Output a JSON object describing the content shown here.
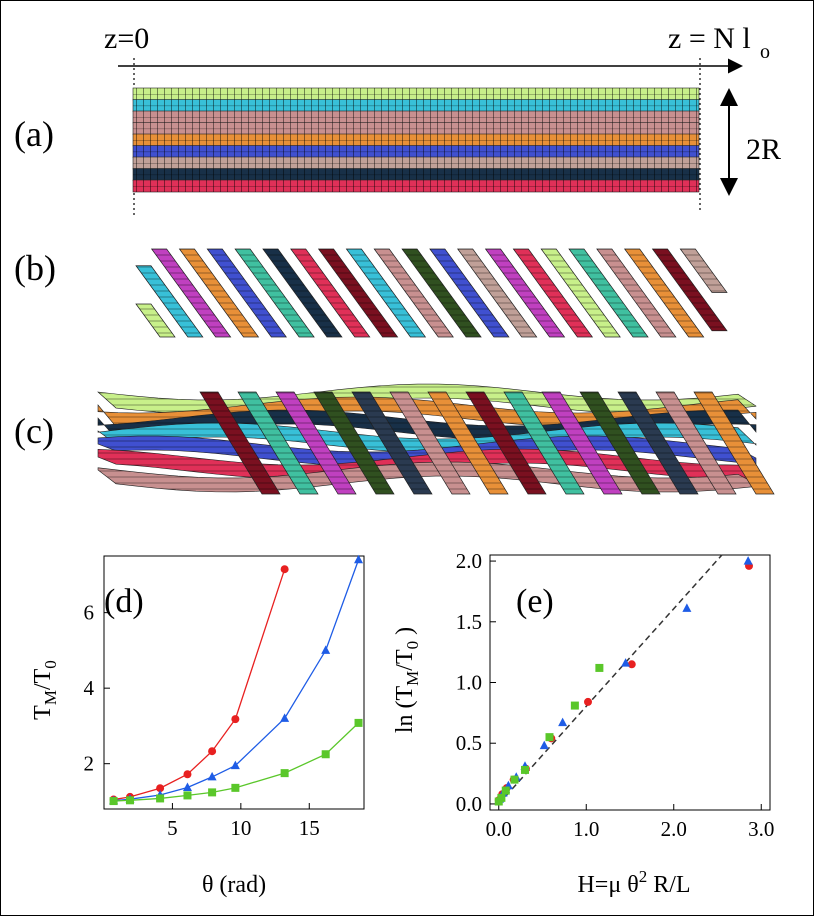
{
  "panel_labels": [
    "(a)",
    "(b)",
    "(c)",
    "(d)",
    "(e)"
  ],
  "panel_a": {
    "z_start_label": "z=0",
    "z_end_label": "z = N l",
    "z_end_subscript": "o",
    "diameter_label": "2R"
  },
  "strand_colors": [
    "#c8f08a",
    "#38c0d8",
    "#c89090",
    "#e89038",
    "#4050d0",
    "#c0a098",
    "#183048",
    "#e03058"
  ],
  "chart_data": [
    {
      "type": "line",
      "panel": "(d)",
      "xlabel": "θ (rad)",
      "ylabel_main": "T",
      "ylabel_sub1": "M",
      "ylabel_mid": "/T",
      "ylabel_sub2": "0",
      "xlim": [
        0,
        19
      ],
      "ylim": [
        0.8,
        7.5
      ],
      "xticks": [
        5,
        10,
        15
      ],
      "yticks": [
        2,
        4,
        6
      ],
      "series": [
        {
          "color": "#e82020",
          "marker": "circle",
          "x": [
            0.7,
            1.9,
            4.1,
            6.1,
            7.9,
            9.6,
            13.2
          ],
          "y": [
            1.05,
            1.12,
            1.35,
            1.72,
            2.33,
            3.18,
            7.15
          ]
        },
        {
          "color": "#1e5ce6",
          "marker": "triangle",
          "x": [
            0.7,
            1.9,
            4.1,
            6.1,
            7.9,
            9.6,
            13.2,
            16.2,
            18.6
          ],
          "y": [
            1.02,
            1.06,
            1.17,
            1.37,
            1.65,
            1.95,
            3.2,
            5.0,
            7.4
          ]
        },
        {
          "color": "#5ac72a",
          "marker": "square",
          "x": [
            0.7,
            1.9,
            4.1,
            6.1,
            7.9,
            9.6,
            13.2,
            16.2,
            18.6
          ],
          "y": [
            1.01,
            1.03,
            1.08,
            1.16,
            1.24,
            1.36,
            1.75,
            2.25,
            3.08
          ]
        }
      ]
    },
    {
      "type": "scatter",
      "panel": "(e)",
      "xlabel_main": "H=μ θ",
      "xlabel_sup": "2",
      "xlabel_end": " R/L",
      "ylabel_main": "ln (T",
      "ylabel_sub1": "M",
      "ylabel_mid": "/T",
      "ylabel_sub2": "0",
      "ylabel_end": " )",
      "xlim": [
        -0.1,
        3.1
      ],
      "ylim": [
        -0.05,
        2.05
      ],
      "xticks": [
        "0.0",
        "1.0",
        "2.0",
        "3.0"
      ],
      "yticks": [
        "0.0",
        "0.5",
        "1.0",
        "1.5",
        "2.0"
      ],
      "fit_line": {
        "x": [
          0.0,
          2.55
        ],
        "y": [
          0.0,
          2.05
        ]
      },
      "series": [
        {
          "color": "#e82020",
          "marker": "circle",
          "x": [
            0.0,
            0.04,
            0.09,
            0.17,
            0.31,
            0.6,
            1.02,
            1.52,
            2.86
          ],
          "y": [
            0.03,
            0.08,
            0.13,
            0.2,
            0.29,
            0.54,
            0.84,
            1.15,
            1.96
          ]
        },
        {
          "color": "#1e5ce6",
          "marker": "triangle",
          "x": [
            0.01,
            0.05,
            0.11,
            0.2,
            0.3,
            0.52,
            0.73,
            1.45,
            2.15,
            2.85
          ],
          "y": [
            0.04,
            0.09,
            0.15,
            0.22,
            0.31,
            0.48,
            0.67,
            1.16,
            1.61,
            2.0
          ]
        },
        {
          "color": "#5ac72a",
          "marker": "square",
          "x": [
            0.0,
            0.03,
            0.08,
            0.18,
            0.3,
            0.58,
            0.87,
            1.15
          ],
          "y": [
            0.02,
            0.05,
            0.11,
            0.2,
            0.28,
            0.55,
            0.81,
            1.12
          ]
        }
      ]
    }
  ]
}
